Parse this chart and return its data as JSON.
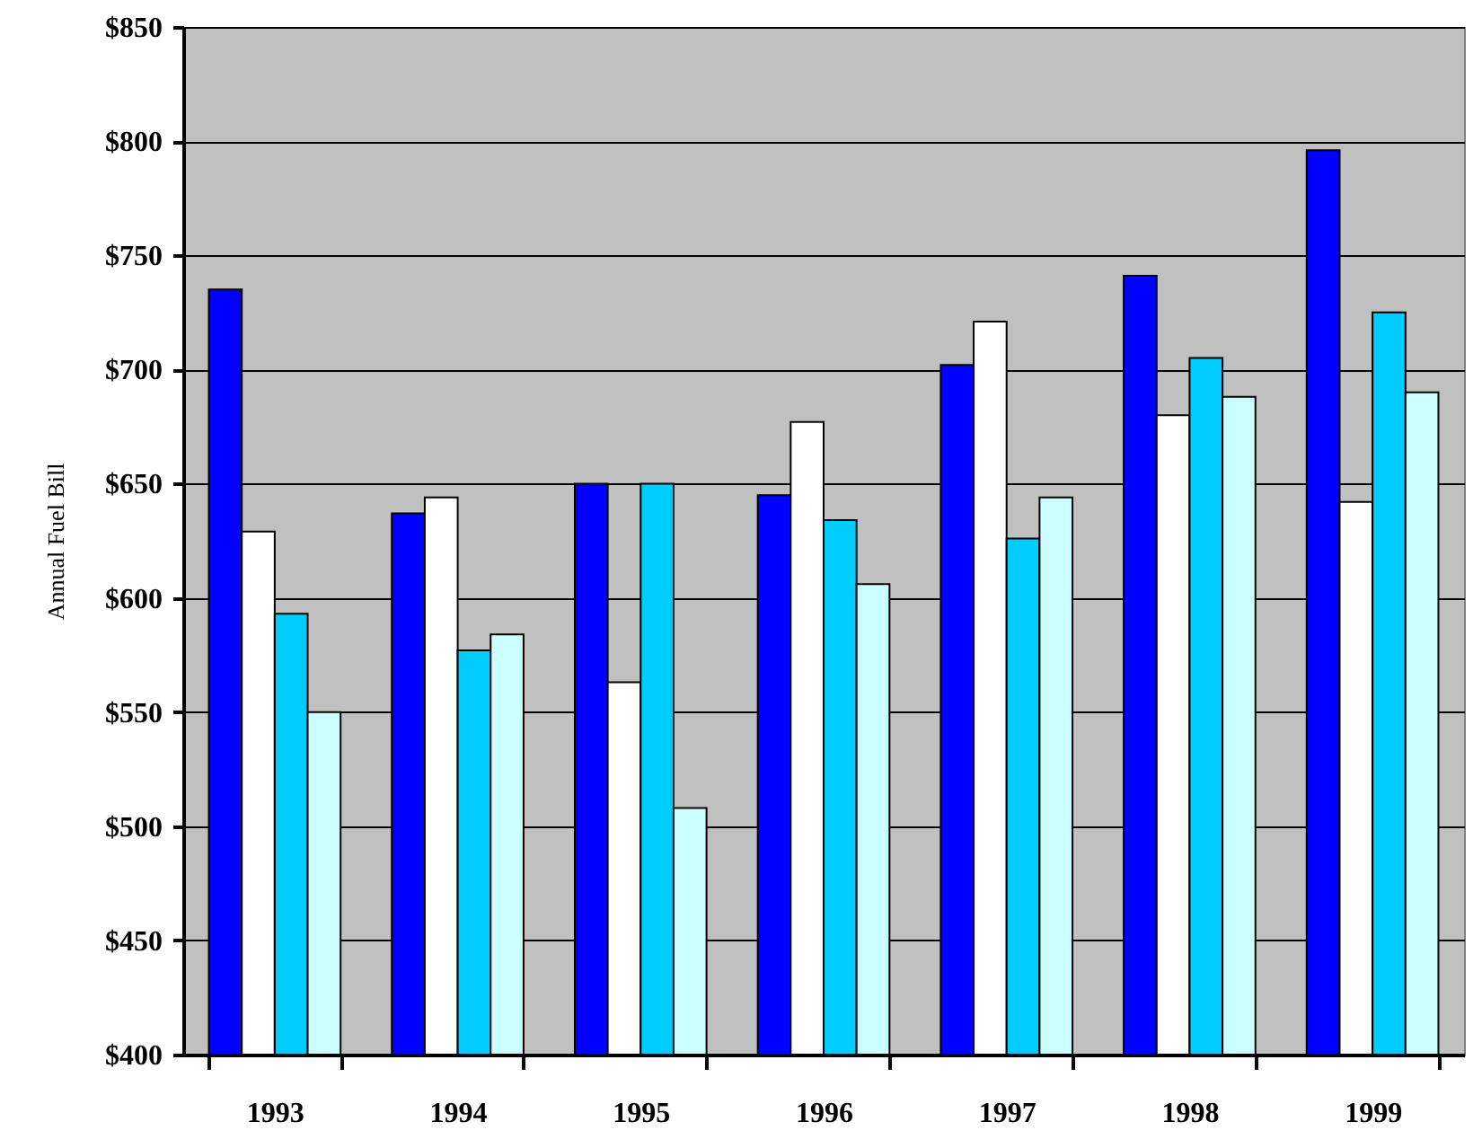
{
  "chart_data": {
    "type": "bar",
    "ylabel": "Annual Fuel Bill",
    "categories": [
      "1993",
      "1994",
      "1995",
      "1996",
      "1997",
      "1998",
      "1999"
    ],
    "series": [
      {
        "color": "#0000ff",
        "values": [
          735,
          637,
          650,
          645,
          702,
          741,
          796
        ]
      },
      {
        "color": "#ffffff",
        "values": [
          629,
          644,
          563,
          677,
          721,
          680,
          642
        ]
      },
      {
        "color": "#00ccff",
        "values": [
          593,
          577,
          650,
          634,
          626,
          705,
          725
        ]
      },
      {
        "color": "#ccffff",
        "values": [
          550,
          584,
          508,
          606,
          644,
          688,
          690
        ]
      }
    ],
    "ylim": [
      400,
      850
    ],
    "yticks": [
      {
        "value": 400,
        "label": "$400"
      },
      {
        "value": 450,
        "label": "$450"
      },
      {
        "value": 500,
        "label": "$500"
      },
      {
        "value": 550,
        "label": "$550"
      },
      {
        "value": 600,
        "label": "$600"
      },
      {
        "value": 650,
        "label": "$650"
      },
      {
        "value": 700,
        "label": "$700"
      },
      {
        "value": 750,
        "label": "$750"
      },
      {
        "value": 800,
        "label": "$800"
      },
      {
        "value": 850,
        "label": "$850"
      }
    ],
    "grid": "y"
  }
}
